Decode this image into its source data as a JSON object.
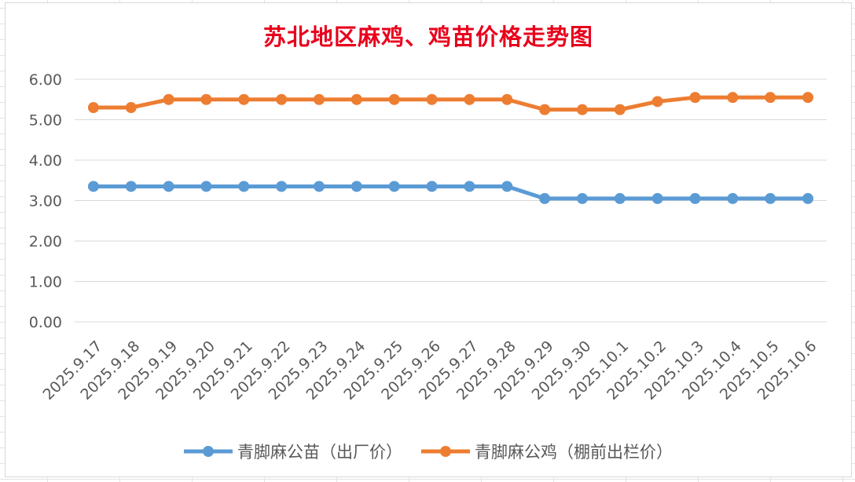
{
  "chart_data": {
    "type": "line",
    "title": "苏北地区麻鸡、鸡苗价格走势图",
    "categories": [
      "2025.9.17",
      "2025.9.18",
      "2025.9.19",
      "2025.9.20",
      "2025.9.21",
      "2025.9.22",
      "2025.9.23",
      "2025.9.24",
      "2025.9.25",
      "2025.9.26",
      "2025.9.27",
      "2025.9.28",
      "2025.9.29",
      "2025.9.30",
      "2025.10.1",
      "2025.10.2",
      "2025.10.3",
      "2025.10.4",
      "2025.10.5",
      "2025.10.6"
    ],
    "yticks": [
      "0.00",
      "1.00",
      "2.00",
      "3.00",
      "4.00",
      "5.00",
      "6.00"
    ],
    "ylim": [
      0,
      6
    ],
    "grid": true,
    "legend_position": "bottom",
    "series": [
      {
        "name": "青脚麻公苗（出厂价）",
        "color": "#5b9bd5",
        "values": [
          3.35,
          3.35,
          3.35,
          3.35,
          3.35,
          3.35,
          3.35,
          3.35,
          3.35,
          3.35,
          3.35,
          3.35,
          3.05,
          3.05,
          3.05,
          3.05,
          3.05,
          3.05,
          3.05,
          3.05
        ]
      },
      {
        "name": "青脚麻公鸡（棚前出栏价）",
        "color": "#ed7d31",
        "values": [
          5.3,
          5.3,
          5.5,
          5.5,
          5.5,
          5.5,
          5.5,
          5.5,
          5.5,
          5.5,
          5.5,
          5.5,
          5.25,
          5.25,
          5.25,
          5.45,
          5.55,
          5.55,
          5.55,
          5.55
        ]
      }
    ]
  }
}
